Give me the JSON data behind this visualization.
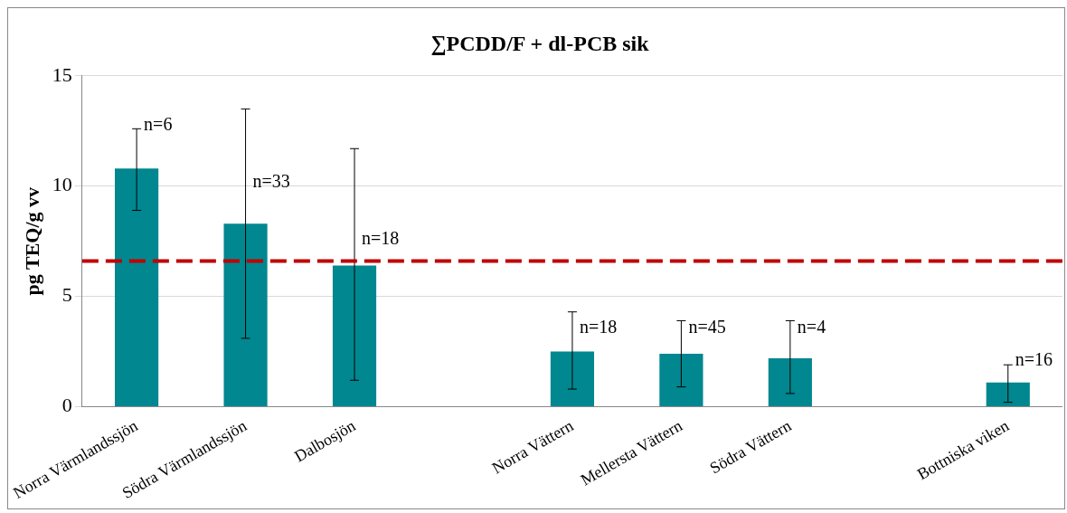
{
  "chart_data": {
    "type": "bar",
    "title": "∑PCDD/F + dl-PCB sik",
    "ylabel": "pg TEQ/g vv",
    "categories": [
      "Norra Värmlandssjön",
      "Södra Värmlandssjön",
      "Dalbosjön",
      null,
      "Norra Vättern",
      "Mellersta Vättern",
      "Södra Vättern",
      null,
      "Bottniska viken"
    ],
    "values": [
      10.8,
      8.3,
      6.4,
      null,
      2.5,
      2.4,
      2.2,
      null,
      1.1
    ],
    "errors": [
      [
        8.9,
        12.6
      ],
      [
        3.1,
        13.5
      ],
      [
        1.2,
        11.7
      ],
      null,
      [
        0.8,
        4.3
      ],
      [
        0.9,
        3.9
      ],
      [
        0.6,
        3.9
      ],
      null,
      [
        0.2,
        1.9
      ]
    ],
    "color": "#00878f",
    "ylim": [
      0,
      15
    ],
    "yticks": [
      0,
      5,
      10,
      15
    ],
    "grid": "y",
    "legend": false,
    "ref_lines": [
      {
        "axis": "y",
        "value": 6.6,
        "color": "#c00000",
        "line_style": "dashed"
      }
    ],
    "annotations": [
      {
        "text": "n=6",
        "x": "Norra Värmlandssjön",
        "y": 12.6
      },
      {
        "text": "n=33",
        "x": "Södra Värmlandssjön",
        "y": 10
      },
      {
        "text": "n=18",
        "x": "Dalbosjön",
        "y": 7.4
      },
      {
        "text": "n=18",
        "x": "Norra Vättern",
        "y": 3.4
      },
      {
        "text": "n=45",
        "x": "Mellersta Vättern",
        "y": 3.4
      },
      {
        "text": "n=4",
        "x": "Södra Vättern",
        "y": 3.4
      },
      {
        "text": "n=16",
        "x": "Bottniska viken",
        "y": 1.9
      }
    ]
  }
}
